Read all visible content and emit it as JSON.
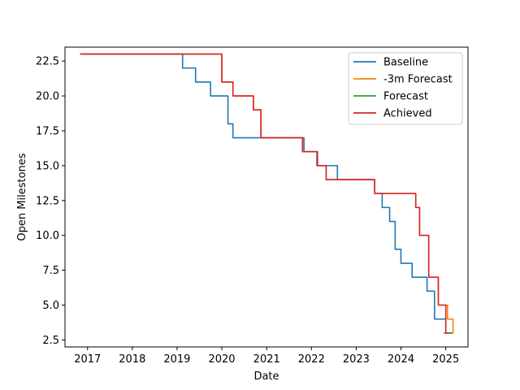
{
  "chart_data": {
    "type": "line",
    "title": "",
    "xlabel": "Date",
    "ylabel": "Open Milestones",
    "x_is_date": true,
    "xlim": [
      "2016-07-01",
      "2025-07-01"
    ],
    "ylim": [
      2.0,
      23.5
    ],
    "xticks": [
      "2017-01-01",
      "2018-01-01",
      "2019-01-01",
      "2020-01-01",
      "2021-01-01",
      "2022-01-01",
      "2023-01-01",
      "2024-01-01",
      "2025-01-01"
    ],
    "xtick_labels": [
      "2017",
      "2018",
      "2019",
      "2020",
      "2021",
      "2022",
      "2023",
      "2024",
      "2025"
    ],
    "yticks": [
      2.5,
      5.0,
      7.5,
      10.0,
      12.5,
      15.0,
      17.5,
      20.0,
      22.5
    ],
    "ytick_labels": [
      "2.5",
      "5.0",
      "7.5",
      "10.0",
      "12.5",
      "15.0",
      "17.5",
      "20.0",
      "22.5"
    ],
    "grid": false,
    "legend_position": "top-right",
    "series": [
      {
        "name": "Baseline",
        "color": "#1f77b4",
        "step": true,
        "points": [
          [
            "2016-11-01",
            23
          ],
          [
            "2019-02-15",
            22
          ],
          [
            "2019-06-01",
            21
          ],
          [
            "2019-10-01",
            20
          ],
          [
            "2020-02-20",
            18
          ],
          [
            "2020-04-01",
            17
          ],
          [
            "2021-01-01",
            17
          ],
          [
            "2021-11-01",
            16
          ],
          [
            "2022-02-20",
            15
          ],
          [
            "2022-08-01",
            14
          ],
          [
            "2023-06-01",
            13
          ],
          [
            "2023-08-01",
            12
          ],
          [
            "2023-10-01",
            11
          ],
          [
            "2023-11-15",
            9
          ],
          [
            "2024-01-01",
            8
          ],
          [
            "2024-04-01",
            7
          ],
          [
            "2024-08-01",
            6
          ],
          [
            "2024-10-01",
            4
          ],
          [
            "2025-01-01",
            3
          ],
          [
            "2025-03-01",
            3
          ]
        ]
      },
      {
        "name": "-3m Forecast",
        "color": "#ff7f0e",
        "step": true,
        "points": [
          [
            "2016-11-01",
            23
          ],
          [
            "2020-01-01",
            21
          ],
          [
            "2020-04-01",
            20
          ],
          [
            "2020-09-15",
            19
          ],
          [
            "2020-11-15",
            17
          ],
          [
            "2021-10-20",
            16
          ],
          [
            "2022-02-15",
            15
          ],
          [
            "2022-05-01",
            14
          ],
          [
            "2023-06-01",
            13
          ],
          [
            "2024-05-01",
            12
          ],
          [
            "2024-06-01",
            10
          ],
          [
            "2024-08-15",
            7
          ],
          [
            "2024-11-01",
            5
          ],
          [
            "2025-01-15",
            4
          ],
          [
            "2025-03-01",
            3
          ]
        ]
      },
      {
        "name": "Forecast",
        "color": "#2ca02c",
        "step": true,
        "points": [
          [
            "2024-12-15",
            3
          ],
          [
            "2025-03-01",
            3
          ]
        ]
      },
      {
        "name": "Achieved",
        "color": "#d62728",
        "step": true,
        "points": [
          [
            "2016-11-01",
            23
          ],
          [
            "2020-01-01",
            21
          ],
          [
            "2020-04-01",
            20
          ],
          [
            "2020-09-15",
            19
          ],
          [
            "2020-11-15",
            17
          ],
          [
            "2021-10-20",
            16
          ],
          [
            "2022-02-15",
            15
          ],
          [
            "2022-05-01",
            14
          ],
          [
            "2023-06-01",
            13
          ],
          [
            "2024-05-01",
            12
          ],
          [
            "2024-06-01",
            10
          ],
          [
            "2024-08-15",
            7
          ],
          [
            "2024-11-01",
            5
          ],
          [
            "2025-01-01",
            3
          ],
          [
            "2025-02-01",
            3
          ]
        ]
      }
    ]
  }
}
